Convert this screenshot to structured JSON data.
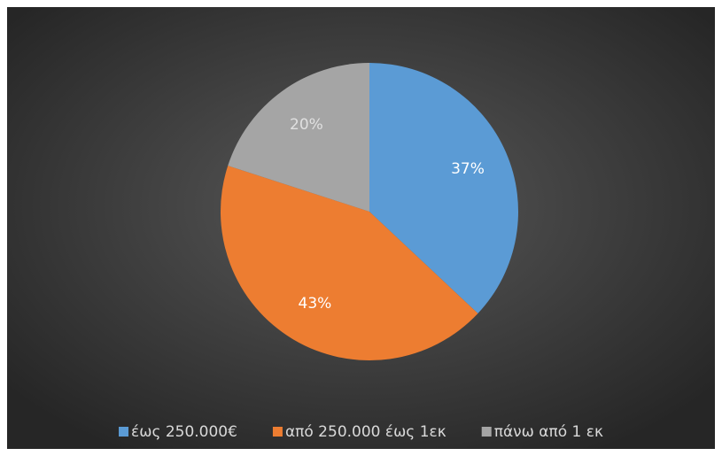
{
  "chart_data": {
    "type": "pie",
    "categories": [
      "έως 250.000€",
      "από 250.000 έως 1εκ",
      "πάνω από 1 εκ"
    ],
    "values": [
      37,
      43,
      20
    ],
    "value_labels": [
      "37%",
      "43%",
      "20%"
    ],
    "colors": [
      "#5b9bd5",
      "#ed7d31",
      "#a5a5a5"
    ],
    "legend": "bottom"
  }
}
